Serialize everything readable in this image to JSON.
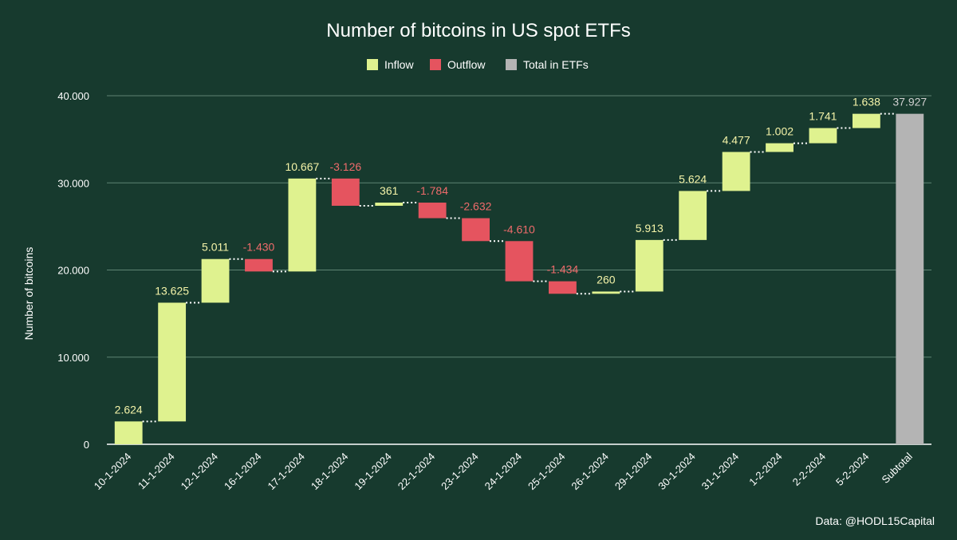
{
  "chart_data": {
    "type": "waterfall",
    "title": "Number of bitcoins in US spot ETFs",
    "ylabel": "Number of bitcoins",
    "xlabel": "",
    "ylim": [
      0,
      40000
    ],
    "yticks": [
      0,
      10000,
      20000,
      30000,
      40000
    ],
    "ytick_labels": [
      "0",
      "10.000",
      "20.000",
      "30.000",
      "40.000"
    ],
    "grid": true,
    "legend_position": "top",
    "legend": [
      {
        "name": "Inflow",
        "color": "#dff28f"
      },
      {
        "name": "Outflow",
        "color": "#e5545f"
      },
      {
        "name": "Total in ETFs",
        "color": "#b4b4b4"
      }
    ],
    "categories": [
      "10-1-2024",
      "11-1-2024",
      "12-1-2024",
      "16-1-2024",
      "17-1-2024",
      "18-1-2024",
      "19-1-2024",
      "22-1-2024",
      "23-1-2024",
      "24-1-2024",
      "25-1-2024",
      "26-1-2024",
      "29-1-2024",
      "30-1-2024",
      "31-1-2024",
      "1-2-2024",
      "2-2-2024",
      "5-2-2024",
      "Subtotal"
    ],
    "values": [
      2624,
      13625,
      5011,
      -1430,
      10667,
      -3126,
      361,
      -1784,
      -2632,
      -4610,
      -1434,
      260,
      5913,
      5624,
      4477,
      1002,
      1741,
      1638,
      37927
    ],
    "value_labels": [
      "2.624",
      "13.625",
      "5.011",
      "-1.430",
      "10.667",
      "-3.126",
      "361",
      "-1.784",
      "-2.632",
      "-4.610",
      "-1.434",
      "260",
      "5.913",
      "5.624",
      "4.477",
      "1.002",
      "1.741",
      "1.638",
      "37.927"
    ],
    "colors": {
      "inflow": "#dff28f",
      "outflow": "#e5545f",
      "total": "#b4b4b4",
      "inflow_label": "#f4f3a8",
      "outflow_label": "#ef6b6b",
      "total_label": "#d0d0d0"
    },
    "source": "Data: @HODL15Capital"
  }
}
